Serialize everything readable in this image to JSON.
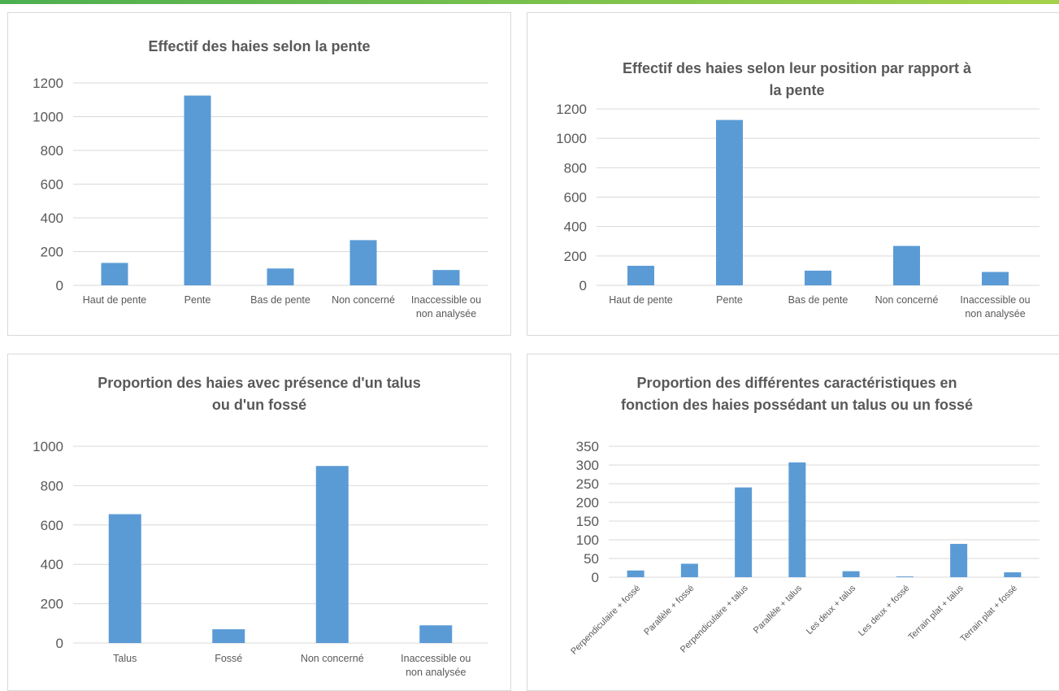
{
  "colors": {
    "bar": "#5B9BD5",
    "grid": "#D9D9D9",
    "axis_text": "#595959",
    "top_bar_start": "#4CAF50",
    "top_bar_end": "#A5D14A"
  },
  "chart_data": [
    {
      "type": "bar",
      "title_lines": [
        "Effectif des haies selon la pente"
      ],
      "categories": [
        "Haut de pente",
        "Pente",
        "Bas de pente",
        "Non concerné",
        "Inaccessible ou non analysée"
      ],
      "category_lines": [
        [
          "Haut de pente"
        ],
        [
          "Pente"
        ],
        [
          "Bas de pente"
        ],
        [
          "Non concerné"
        ],
        [
          "Inaccessible ou",
          "non analysée"
        ]
      ],
      "values": [
        133,
        1125,
        100,
        268,
        91
      ],
      "yticks": [
        0,
        200,
        400,
        600,
        800,
        1000,
        1200
      ],
      "ylim": [
        0,
        1200
      ],
      "grid": true,
      "legend": "none"
    },
    {
      "type": "bar",
      "title_lines": [
        "Effectif des haies selon leur position par rapport à",
        "la pente"
      ],
      "categories": [
        "Haut de pente",
        "Pente",
        "Bas de pente",
        "Non concerné",
        "Inaccessible ou non analysée"
      ],
      "category_lines": [
        [
          "Haut de pente"
        ],
        [
          "Pente"
        ],
        [
          "Bas de pente"
        ],
        [
          "Non concerné"
        ],
        [
          "Inaccessible ou",
          "non analysée"
        ]
      ],
      "values": [
        133,
        1125,
        100,
        268,
        91
      ],
      "yticks": [
        0,
        200,
        400,
        600,
        800,
        1000,
        1200
      ],
      "ylim": [
        0,
        1200
      ],
      "grid": true,
      "legend": "none"
    },
    {
      "type": "bar",
      "title_lines": [
        "Proportion des haies avec présence d'un talus",
        "ou d'un fossé"
      ],
      "categories": [
        "Talus",
        "Fossé",
        "Non concerné",
        "Inaccessible ou non analysée"
      ],
      "category_lines": [
        [
          "Talus"
        ],
        [
          "Fossé"
        ],
        [
          "Non concerné"
        ],
        [
          "Inaccessible ou",
          "non analysée"
        ]
      ],
      "values": [
        655,
        70,
        900,
        90
      ],
      "yticks": [
        0,
        200,
        400,
        600,
        800,
        1000
      ],
      "ylim": [
        0,
        1000
      ],
      "grid": true,
      "legend": "none"
    },
    {
      "type": "bar",
      "title_lines": [
        "Proportion des différentes caractéristiques en",
        "fonction des haies possédant un talus ou un fossé"
      ],
      "categories": [
        "Perpendiculaire + fossé",
        "Parallèle + fossé",
        "Perpendiculaire + talus",
        "Parallèle + talus",
        "Les deux + talus",
        "Les deux + fossé",
        "Terrain plat + talus",
        "Terrain plat + fossé"
      ],
      "values": [
        18,
        36,
        240,
        307,
        16,
        2,
        89,
        13
      ],
      "yticks": [
        0,
        50,
        100,
        150,
        200,
        250,
        300,
        350
      ],
      "ylim": [
        0,
        350
      ],
      "grid": true,
      "legend": "none",
      "x_labels_rotated": true
    }
  ]
}
